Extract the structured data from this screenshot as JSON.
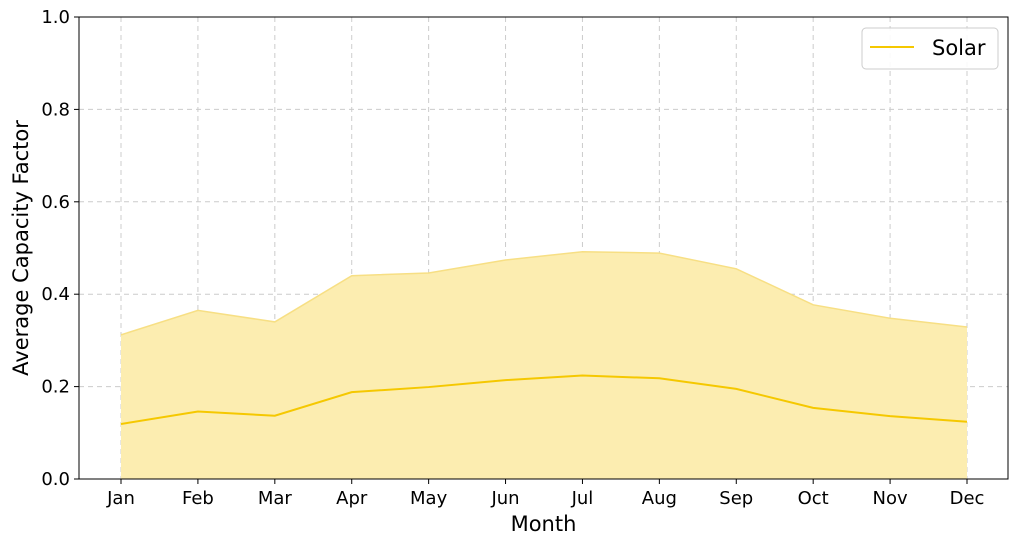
{
  "chart_data": {
    "type": "area",
    "categories": [
      "Jan",
      "Feb",
      "Mar",
      "Apr",
      "May",
      "Jun",
      "Jul",
      "Aug",
      "Sep",
      "Oct",
      "Nov",
      "Dec"
    ],
    "series": [
      {
        "name": "Solar",
        "values": [
          0.119,
          0.146,
          0.137,
          0.188,
          0.199,
          0.214,
          0.224,
          0.218,
          0.195,
          0.154,
          0.136,
          0.124
        ],
        "upper": [
          0.312,
          0.365,
          0.34,
          0.44,
          0.446,
          0.474,
          0.492,
          0.489,
          0.455,
          0.377,
          0.348,
          0.329
        ],
        "lower": [
          0,
          0,
          0,
          0,
          0,
          0,
          0,
          0,
          0,
          0,
          0,
          0
        ]
      }
    ],
    "title": "",
    "xlabel": "Month",
    "ylabel": "Average Capacity Factor",
    "ylim": [
      0,
      1.0
    ],
    "yticks": [
      "0.0",
      "0.2",
      "0.4",
      "0.6",
      "0.8",
      "1.0"
    ],
    "grid": true,
    "legend_position": "top-right",
    "colors": {
      "line": "#f5c800",
      "fill": "#fcedb0",
      "fill_edge": "#f7df84"
    }
  }
}
